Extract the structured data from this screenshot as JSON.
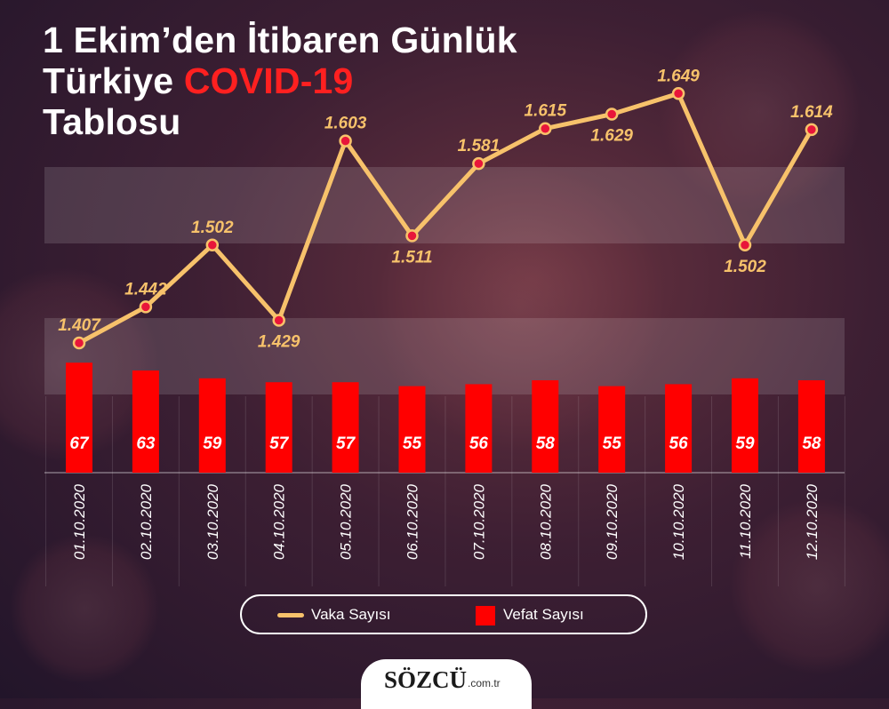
{
  "title": {
    "line1": "1 Ekim’den İtibaren Günlük",
    "line2_prefix": "Türkiye ",
    "line2_highlight": "COVID-19",
    "line3": "Tablosu"
  },
  "colors": {
    "case_line": "#f7c26b",
    "case_label": "#f7c26b",
    "death_bar": "#ff0000",
    "highlight": "#ff2020",
    "point_fill": "#e8163a"
  },
  "legend": {
    "cases_label": "Vaka Sayısı",
    "deaths_label": "Vefat Sayısı"
  },
  "brand": {
    "name": "SÖZCÜ",
    "suffix": ".com.tr"
  },
  "chart_data": {
    "type": "line+bar",
    "categories": [
      "01.10.2020",
      "02.10.2020",
      "03.10.2020",
      "04.10.2020",
      "05.10.2020",
      "06.10.2020",
      "07.10.2020",
      "08.10.2020",
      "09.10.2020",
      "10.10.2020",
      "11.10.2020",
      "12.10.2020"
    ],
    "series": [
      {
        "name": "Vaka Sayısı",
        "type": "line",
        "values": [
          1407,
          1442,
          1502,
          1429,
          1603,
          1511,
          1581,
          1615,
          1629,
          1649,
          1502,
          1614
        ],
        "labels": [
          "1.407",
          "1.442",
          "1.502",
          "1.429",
          "1.603",
          "1.511",
          "1.581",
          "1.615",
          "1.629",
          "1.649",
          "1.502",
          "1.614"
        ],
        "label_position": [
          "above",
          "above",
          "above",
          "below",
          "above",
          "below",
          "above",
          "above",
          "below",
          "above",
          "below",
          "above"
        ]
      },
      {
        "name": "Vefat Sayısı",
        "type": "bar",
        "values": [
          67,
          63,
          59,
          57,
          57,
          55,
          56,
          58,
          55,
          56,
          59,
          58
        ],
        "labels": [
          "67",
          "63",
          "59",
          "57",
          "57",
          "55",
          "56",
          "58",
          "55",
          "56",
          "59",
          "58"
        ]
      }
    ]
  }
}
